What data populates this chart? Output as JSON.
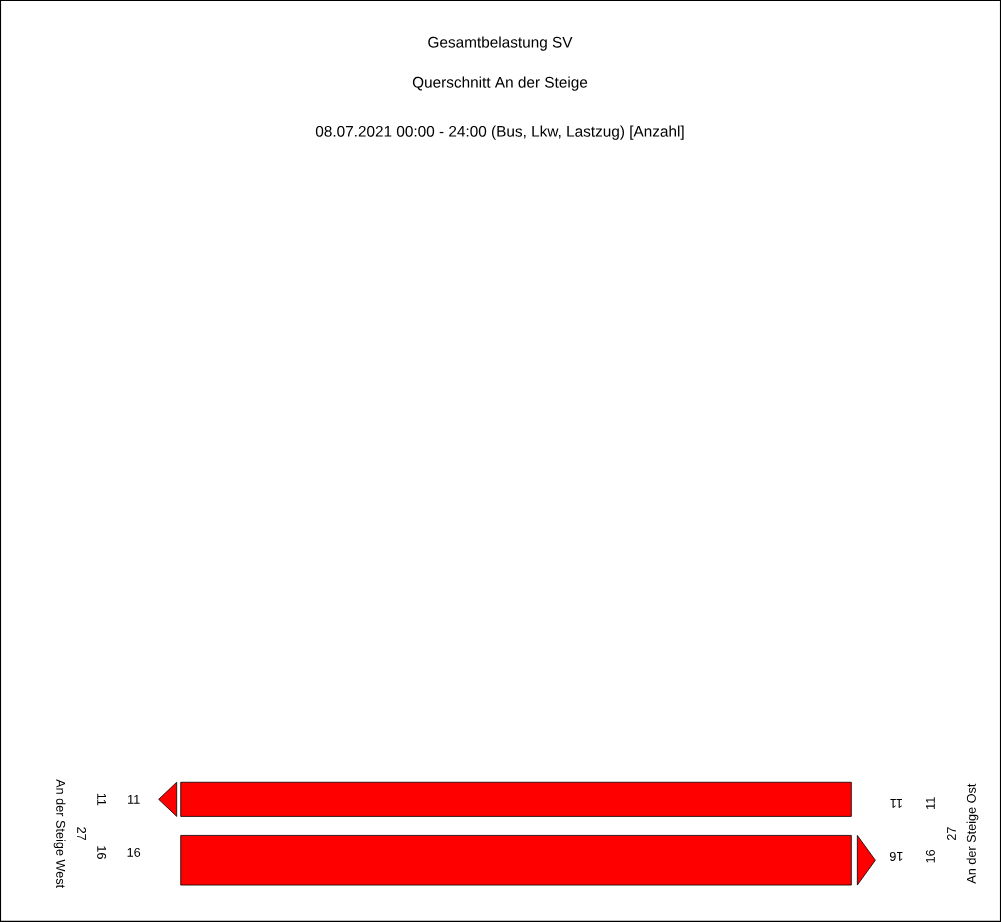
{
  "chart_data": {
    "type": "other",
    "title": "Gesamtbelastung SV",
    "subtitle": "Querschnitt An der Steige",
    "annotations": [
      "08.07.2021 00:00 - 24:00 (Bus, Lkw, Lastzug) [Anzahl]"
    ],
    "categories": [
      "An der Steige West",
      "An der Steige Ost"
    ],
    "series": [
      {
        "color": "#ff0000",
        "values": [
          11,
          11
        ],
        "value_labels": [
          "11",
          "11"
        ]
      },
      {
        "color": "#ff0000",
        "values": [
          16,
          16
        ],
        "value_labels": [
          "16",
          "16"
        ]
      }
    ],
    "totals": [
      "27",
      "27"
    ],
    "data_labels": true
  }
}
